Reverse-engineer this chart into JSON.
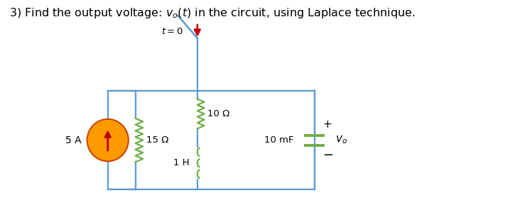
{
  "title_plain": "3) Find the output voltage: ",
  "title_math": "$v_o(t)$",
  "title_end": " in the circuit, using Laplace technique.",
  "bg_color": "#ffffff",
  "wire_color": "#5b9bd5",
  "resistor_color_15": "#70ad47",
  "resistor_color_10": "#70ad47",
  "inductor_color": "#70ad47",
  "capacitor_color": "#70ad47",
  "switch_arm_color": "#5b9bd5",
  "switch_arrow_color": "#c00000",
  "source_fill": "#ff9900",
  "source_border": "#cc4400",
  "source_arrow": "#c00000",
  "figsize": [
    7.25,
    3.13
  ],
  "dpi": 100
}
